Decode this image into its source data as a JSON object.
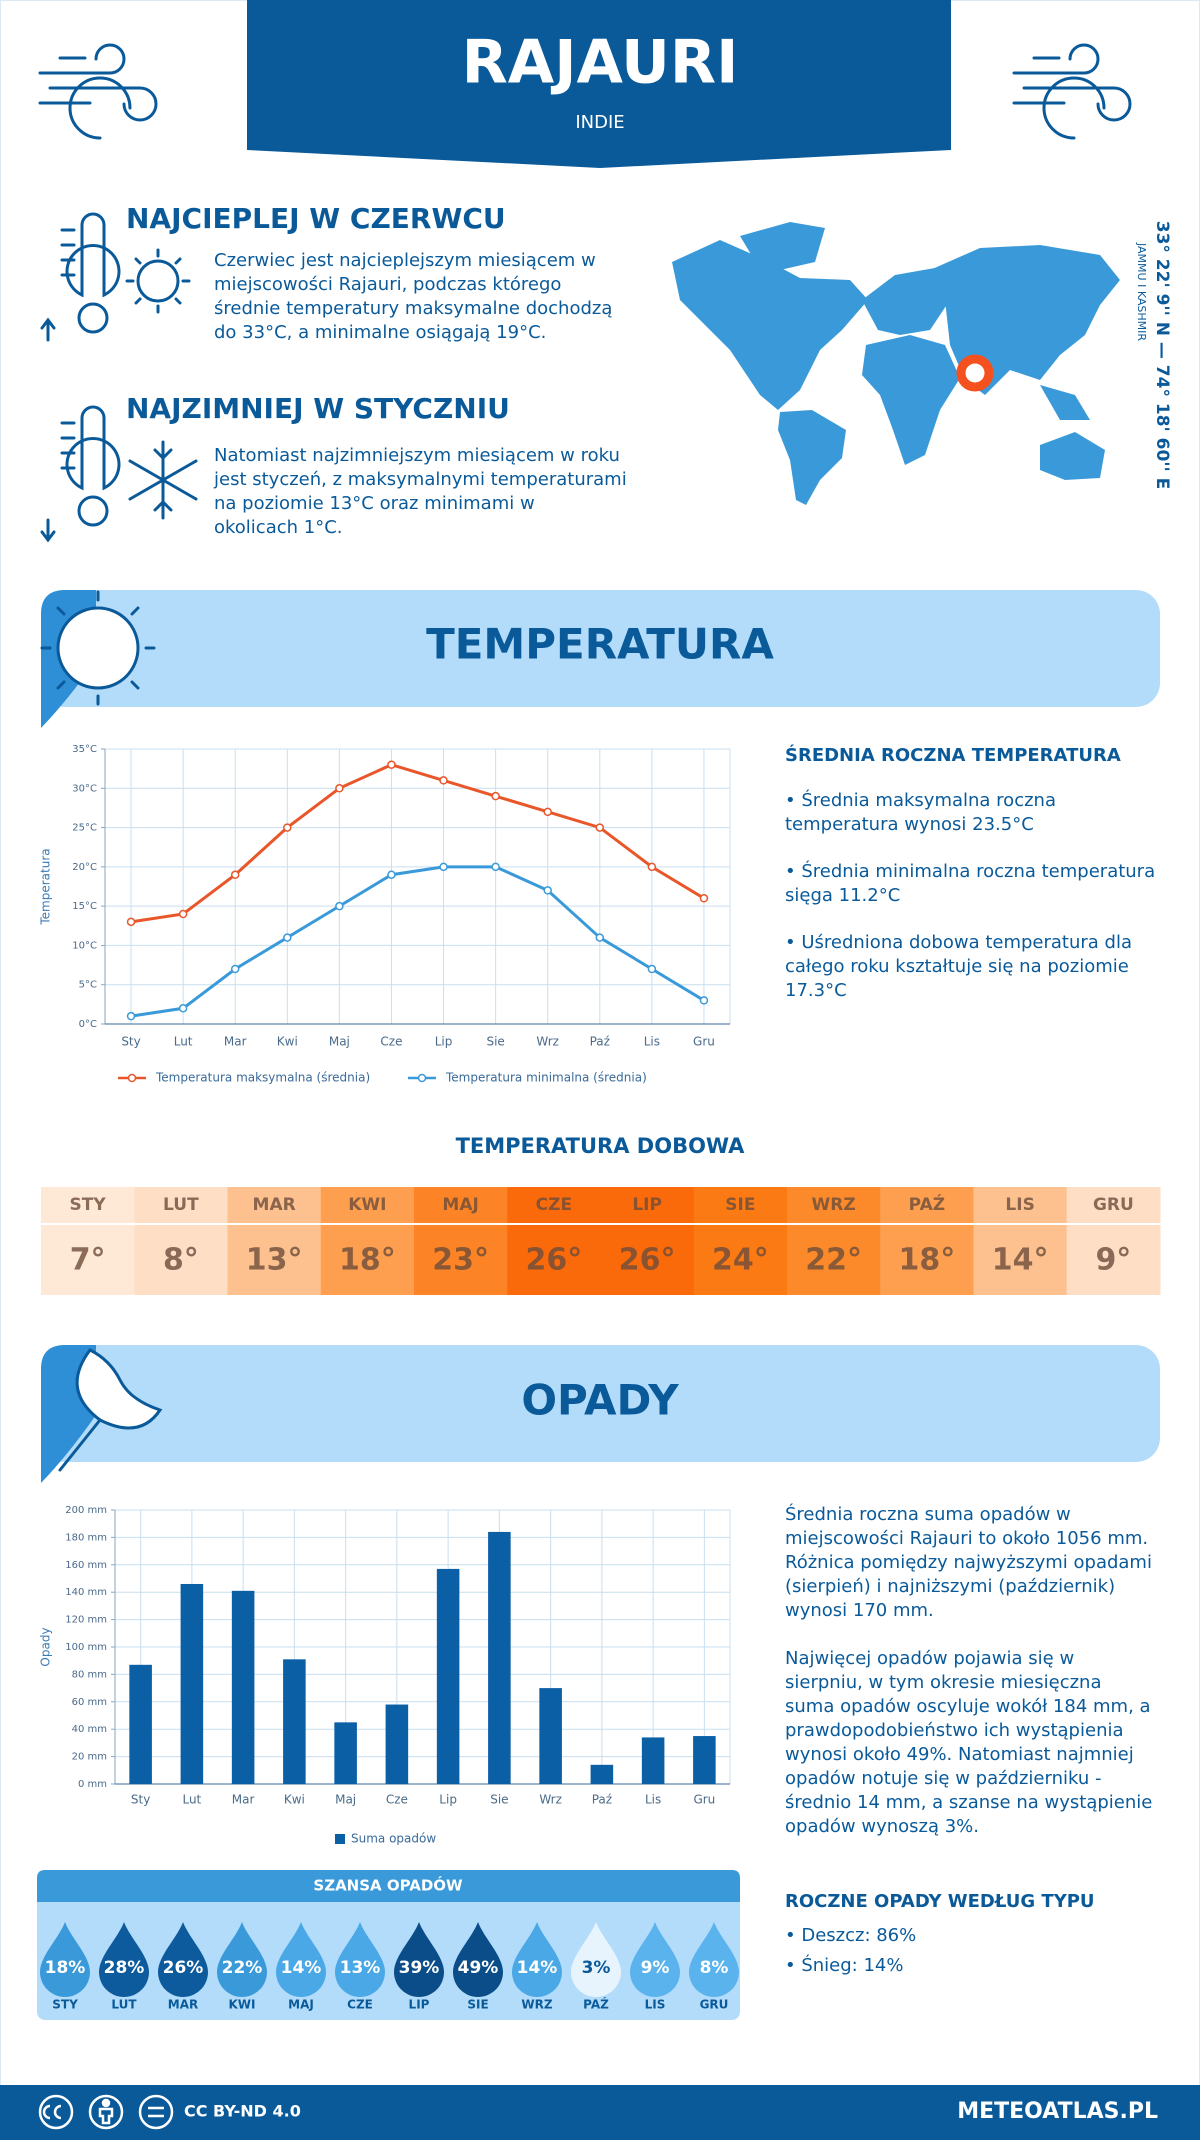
{
  "header": {
    "title": "RAJAURI",
    "subtitle": "INDIE"
  },
  "warmest": {
    "heading": "NAJCIEPLEJ W CZERWCU",
    "lines": [
      "Czerwiec jest najcieplejszym miesiącem w",
      "miejscowości Rajauri, podczas którego",
      "średnie temperatury maksymalne dochodzą",
      "do 33°C, a minimalne osiągają 19°C."
    ]
  },
  "coldest": {
    "heading": "NAJZIMNIEJ W STYCZNIU",
    "lines": [
      "Natomiast najzimniejszym miesiącem w roku",
      "jest styczeń, z maksymalnymi temperaturami",
      "na poziomie 13°C oraz minimami w",
      "okolicach 1°C."
    ]
  },
  "map": {
    "coordinates": "33° 22' 9'' N — 74° 18' 60'' E",
    "region": "JAMMU I KASHMIR"
  },
  "sections": {
    "temperature": "TEMPERATURA",
    "precipitation": "OPADY"
  },
  "chart_data": [
    {
      "type": "line",
      "y_label": "Temperatura",
      "categories": [
        "Sty",
        "Lut",
        "Mar",
        "Kwi",
        "Maj",
        "Cze",
        "Lip",
        "Sie",
        "Wrz",
        "Paź",
        "Lis",
        "Gru"
      ],
      "ylim": [
        0,
        35
      ],
      "yticks": [
        {
          "value": 0,
          "label": "0°C"
        },
        {
          "value": 5,
          "label": "5°C"
        },
        {
          "value": 10,
          "label": "10°C"
        },
        {
          "value": 15,
          "label": "15°C"
        },
        {
          "value": 20,
          "label": "20°C"
        },
        {
          "value": 25,
          "label": "25°C"
        },
        {
          "value": 30,
          "label": "30°C"
        },
        {
          "value": 35,
          "label": "35°C"
        }
      ],
      "grid": true,
      "series": [
        {
          "name": "Temperatura maksymalna (średnia)",
          "color": "#e8562a",
          "values": [
            13,
            14,
            19,
            25,
            30,
            33,
            31,
            29,
            27,
            25,
            20,
            16
          ]
        },
        {
          "name": "Temperatura minimalna (średnia)",
          "color": "#3a9ad9",
          "values": [
            1,
            2,
            7,
            11,
            15,
            19,
            20,
            20,
            17,
            11,
            7,
            3
          ]
        }
      ]
    },
    {
      "type": "bar",
      "y_label": "Opady",
      "categories": [
        "Sty",
        "Lut",
        "Mar",
        "Kwi",
        "Maj",
        "Cze",
        "Lip",
        "Sie",
        "Wrz",
        "Paź",
        "Lis",
        "Gru"
      ],
      "ylim": [
        0,
        200
      ],
      "yticks": [
        {
          "value": 0,
          "label": "0 mm"
        },
        {
          "value": 20,
          "label": "20 mm"
        },
        {
          "value": 40,
          "label": "40 mm"
        },
        {
          "value": 60,
          "label": "60 mm"
        },
        {
          "value": 80,
          "label": "80 mm"
        },
        {
          "value": 100,
          "label": "100 mm"
        },
        {
          "value": 120,
          "label": "120 mm"
        },
        {
          "value": 140,
          "label": "140 mm"
        },
        {
          "value": 160,
          "label": "160 mm"
        },
        {
          "value": 180,
          "label": "180 mm"
        },
        {
          "value": 200,
          "label": "200 mm"
        }
      ],
      "grid": true,
      "series": [
        {
          "name": "Suma opadów",
          "color": "#0a5fa5",
          "values": [
            87,
            146,
            141,
            91,
            45,
            58,
            157,
            184,
            70,
            14,
            34,
            35
          ]
        }
      ]
    }
  ],
  "temperature_summary": {
    "title": "ŚREDNIA ROCZNA TEMPERATURA",
    "bullets": [
      [
        "• Średnia maksymalna roczna",
        "temperatura wynosi 23.5°C"
      ],
      [
        "• Średnia minimalna roczna temperatura",
        "sięga 11.2°C"
      ],
      [
        "• Uśredniona dobowa temperatura dla",
        "całego roku kształtuje się na poziomie",
        "17.3°C"
      ]
    ]
  },
  "daily_temperature": {
    "title": "TEMPERATURA DOBOWA",
    "cells": [
      {
        "month": "STY",
        "temperature": "7°",
        "color": "#fee8d6"
      },
      {
        "month": "LUT",
        "temperature": "8°",
        "color": "#fedfc6"
      },
      {
        "month": "MAR",
        "temperature": "13°",
        "color": "#fdc08f"
      },
      {
        "month": "KWI",
        "temperature": "18°",
        "color": "#fd9f4f"
      },
      {
        "month": "MAJ",
        "temperature": "23°",
        "color": "#fc8426"
      },
      {
        "month": "CZE",
        "temperature": "26°",
        "color": "#fb6a0a"
      },
      {
        "month": "LIP",
        "temperature": "26°",
        "color": "#fb6a0a"
      },
      {
        "month": "SIE",
        "temperature": "24°",
        "color": "#fb7a14"
      },
      {
        "month": "WRZ",
        "temperature": "22°",
        "color": "#fc8a2a"
      },
      {
        "month": "PAŹ",
        "temperature": "18°",
        "color": "#fd9f4f"
      },
      {
        "month": "LIS",
        "temperature": "14°",
        "color": "#fdc08f"
      },
      {
        "month": "GRU",
        "temperature": "9°",
        "color": "#fedfc6"
      }
    ]
  },
  "precipitation_summary": {
    "paragraphs": [
      [
        "Średnia roczna suma opadów w",
        "miejscowości Rajauri to około 1056 mm.",
        "Różnica pomiędzy najwyższymi opadami",
        "(sierpień) i najniższymi (październik)",
        "wynosi 170 mm."
      ],
      [
        "Najwięcej opadów pojawia się w",
        "sierpniu, w tym okresie miesięczna",
        "suma opadów oscyluje wokół 184 mm, a",
        "prawdopodobieństwo ich wystąpienia",
        "wynosi około 49%. Natomiast najmniej",
        "opadów notuje się w październiku -",
        "średnio 14 mm, a szanse na wystąpienie",
        "opadów wynoszą 3%."
      ]
    ]
  },
  "precipitation_chance": {
    "title": "SZANSA OPADÓW",
    "cells": [
      {
        "month": "STY",
        "chance": "18%",
        "color": "#3a9ad9"
      },
      {
        "month": "LUT",
        "chance": "28%",
        "color": "#0d5a9c"
      },
      {
        "month": "MAR",
        "chance": "26%",
        "color": "#0d5a9c"
      },
      {
        "month": "KWI",
        "chance": "22%",
        "color": "#3a9ad9"
      },
      {
        "month": "MAJ",
        "chance": "14%",
        "color": "#4aa8e6"
      },
      {
        "month": "CZE",
        "chance": "13%",
        "color": "#4aa8e6"
      },
      {
        "month": "LIP",
        "chance": "39%",
        "color": "#0b4d88"
      },
      {
        "month": "SIE",
        "chance": "49%",
        "color": "#0b4d88"
      },
      {
        "month": "WRZ",
        "chance": "14%",
        "color": "#4aa8e6"
      },
      {
        "month": "PAŹ",
        "chance": "3%",
        "color": "#e8f4fd"
      },
      {
        "month": "LIS",
        "chance": "9%",
        "color": "#5ab3ec"
      },
      {
        "month": "GRU",
        "chance": "8%",
        "color": "#5ab3ec"
      }
    ]
  },
  "precipitation_types": {
    "title": "ROCZNE OPADY WEDŁUG TYPU",
    "items": [
      "• Deszcz: 86%",
      "• Śnieg: 14%"
    ]
  },
  "footer": {
    "license": "CC BY-ND 4.0",
    "site": "METEOATLAS.PL"
  }
}
